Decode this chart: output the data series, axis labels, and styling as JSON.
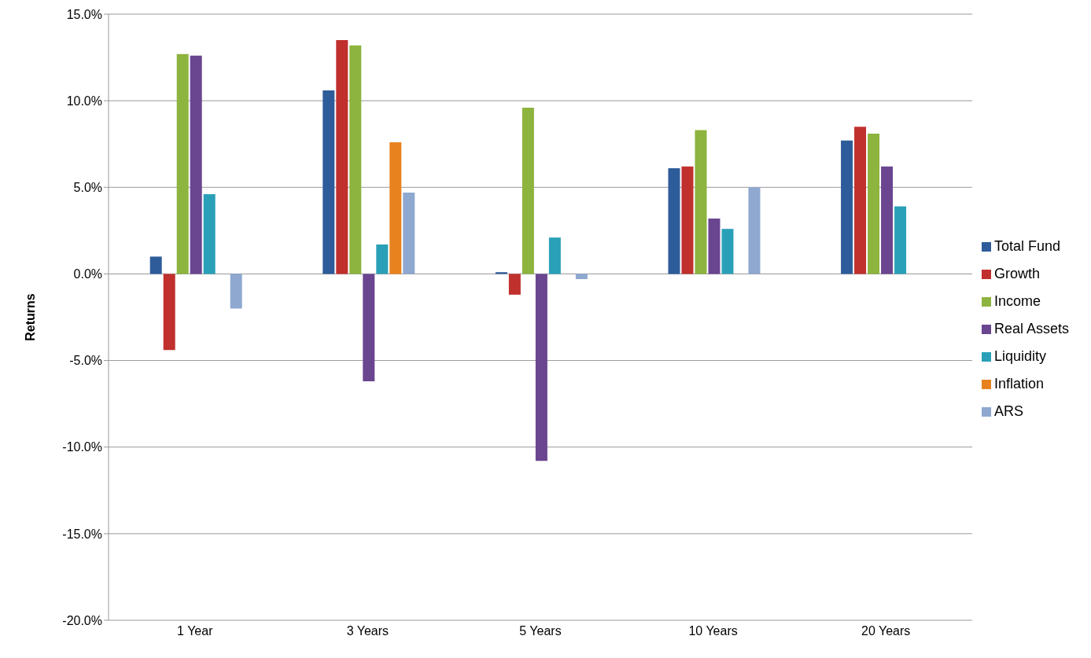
{
  "chart_data": {
    "type": "bar",
    "ylabel": "Returns",
    "categories": [
      "1 Year",
      "3 Years",
      "5 Years",
      "10 Years",
      "20 Years"
    ],
    "series": [
      {
        "name": "Total Fund",
        "color": "#2e5c9a",
        "values": [
          1.0,
          10.6,
          0.1,
          6.1,
          7.7
        ]
      },
      {
        "name": "Growth",
        "color": "#c0302d",
        "values": [
          -4.4,
          13.5,
          -1.2,
          6.2,
          8.5
        ]
      },
      {
        "name": "Income",
        "color": "#8db43e",
        "values": [
          12.7,
          13.2,
          9.6,
          8.3,
          8.1
        ]
      },
      {
        "name": "Real Assets",
        "color": "#6a4590",
        "values": [
          12.6,
          -6.2,
          -10.8,
          3.2,
          6.2
        ]
      },
      {
        "name": "Liquidity",
        "color": "#2aa0b8",
        "values": [
          4.6,
          1.7,
          2.1,
          2.6,
          3.9
        ]
      },
      {
        "name": "Inflation",
        "color": "#e8821f",
        "values": [
          null,
          7.6,
          null,
          null,
          null
        ]
      },
      {
        "name": "ARS",
        "color": "#8ea8d0",
        "values": [
          -2.0,
          4.7,
          -0.3,
          5.0,
          null
        ]
      }
    ],
    "ylim": [
      -20,
      15
    ],
    "yticks": [
      {
        "value": -20,
        "label": "-20.0%"
      },
      {
        "value": -15,
        "label": "-15.0%"
      },
      {
        "value": -10,
        "label": "-10.0%"
      },
      {
        "value": -5,
        "label": "-5.0%"
      },
      {
        "value": 0,
        "label": "0.0%"
      },
      {
        "value": 5,
        "label": "5.0%"
      },
      {
        "value": 10,
        "label": "10.0%"
      },
      {
        "value": 15,
        "label": "15.0%"
      }
    ],
    "grid": "y",
    "legend": "right"
  }
}
